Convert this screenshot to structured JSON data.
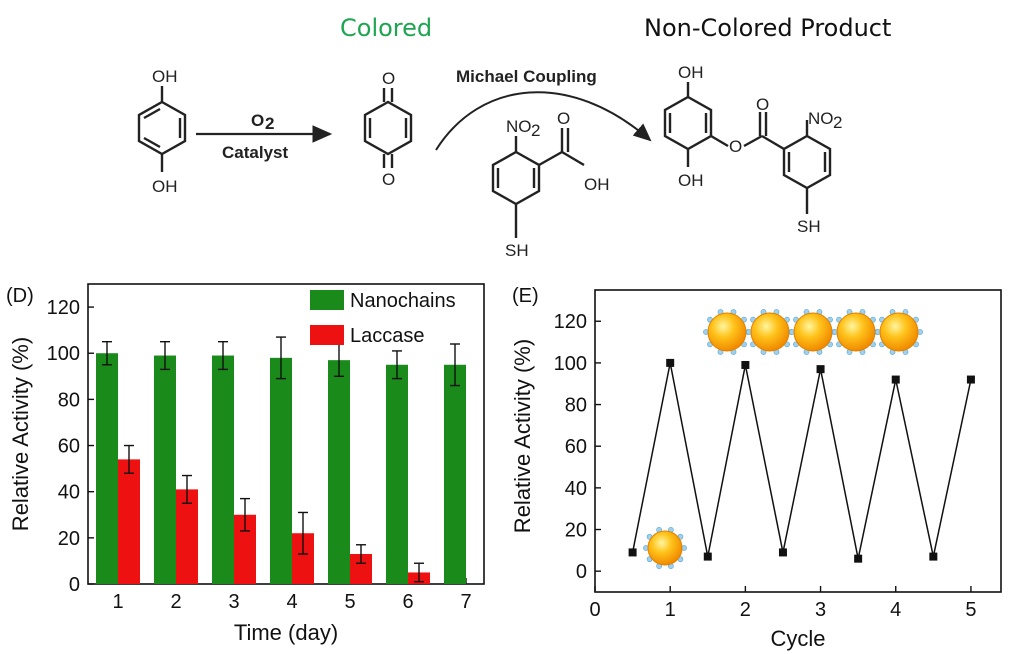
{
  "scheme": {
    "header_colored": "Colored",
    "header_product": "Non-Colored Product",
    "arrow1_top": "O",
    "arrow1_top_sub": "2",
    "arrow1_bottom": "Catalyst",
    "arrow2_label": "Michael Coupling",
    "atoms": {
      "oh": "OH",
      "o": "O",
      "no2": "NO",
      "no2_sub": "2",
      "sh": "SH",
      "o_link": "O"
    },
    "colors": {
      "colored_text": "#1fa552"
    }
  },
  "chart_data": [
    {
      "type": "bar",
      "panel_label": "(D)",
      "xlabel": "Time (day)",
      "ylabel": "Relative Activity (%)",
      "ylim": [
        0,
        130
      ],
      "yticks": [
        0,
        20,
        40,
        60,
        80,
        100,
        120
      ],
      "categories": [
        "1",
        "2",
        "3",
        "4",
        "5",
        "6",
        "7"
      ],
      "legend_position": "top-right",
      "series": [
        {
          "name": "Nanochains",
          "color": "#1a8a1a",
          "values": [
            100,
            99,
            99,
            98,
            97,
            95,
            95
          ],
          "errors": [
            5,
            6,
            6,
            9,
            7,
            6,
            9
          ]
        },
        {
          "name": "Laccase",
          "color": "#ee1111",
          "values": [
            54,
            41,
            30,
            22,
            13,
            5,
            null
          ],
          "errors": [
            6,
            6,
            7,
            9,
            4,
            4,
            null
          ]
        }
      ]
    },
    {
      "type": "line",
      "panel_label": "(E)",
      "xlabel": "Cycle",
      "ylabel": "Relative Activity (%)",
      "xlim": [
        0,
        5.4
      ],
      "ylim": [
        -10,
        135
      ],
      "xticks": [
        0,
        1,
        2,
        3,
        4,
        5
      ],
      "yticks": [
        0,
        20,
        40,
        60,
        80,
        100,
        120
      ],
      "series": [
        {
          "color": "#111111",
          "x": [
            0.5,
            1,
            1.5,
            2,
            2.5,
            3,
            3.5,
            4,
            4.5,
            5
          ],
          "y": [
            9,
            100,
            7,
            99,
            9,
            97,
            6,
            92,
            7,
            92
          ]
        }
      ],
      "insets": [
        "nanochain-icon",
        "single-nanoparticle-icon"
      ]
    }
  ]
}
